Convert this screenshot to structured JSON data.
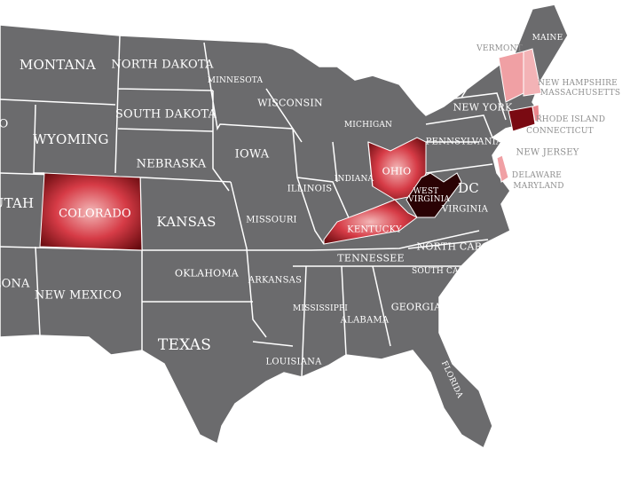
{
  "colors": {
    "land": "#6b6b6d",
    "border": "#ffffff",
    "highlight": "#d8404a",
    "highlight_dark": "#7a0a12",
    "highlight_light": "#f0a0a4",
    "outside_label": "#8f8f8f"
  },
  "highlighted_states": [
    "Colorado",
    "Ohio",
    "West Virginia",
    "Kentucky",
    "Vermont",
    "New Hampshire",
    "Connecticut",
    "Rhode Island",
    "Delaware"
  ],
  "labels": {
    "montana": "MONTANA",
    "north_dakota": "NORTH DAKOTA",
    "minnesota": "MINNESOTA",
    "wisconsin": "WISCONSIN",
    "michigan": "MICHIGAN",
    "south_dakota": "SOUTH DAKOTA",
    "wyoming": "WYOMING",
    "idaho_partial": "O",
    "nebraska": "NEBRASKA",
    "iowa": "IOWA",
    "illinois": "ILLINOIS",
    "indiana": "INDIANA",
    "ohio": "OHIO",
    "west_virginia": "WEST VIRGINIA",
    "kentucky": "KENTUCKY",
    "virginia": "VIRGINIA",
    "dc": "DC",
    "pennsylvania": "PENNSYLVANIA",
    "new_york": "NEW YORK",
    "utah_partial": "UTAH",
    "colorado": "COLORADO",
    "kansas": "KANSAS",
    "missouri": "MISSOURI",
    "tennessee": "TENNESSEE",
    "north_carolina": "NORTH CAROLINA",
    "south_carolina": "SOUTH CAROLINA",
    "arizona_partial": "ZONA",
    "new_mexico": "NEW MEXICO",
    "oklahoma": "OKLAHOMA",
    "arkansas": "ARKANSAS",
    "mississippi": "MISSISSIPPI",
    "alabama": "ALABAMA",
    "georgia": "GEORGIA",
    "texas": "TEXAS",
    "louisiana": "LOUISIANA",
    "florida": "FLORIDA",
    "maine": "MAINE",
    "vermont": "VERMONT",
    "new_hampshire": "NEW HAMPSHIRE",
    "massachusetts": "MASSACHUSETTS",
    "rhode_island": "RHODE ISLAND",
    "connecticut": "CONNECTICUT",
    "new_jersey": "NEW JERSEY",
    "delaware": "DELAWARE",
    "maryland": "MARYLAND"
  }
}
